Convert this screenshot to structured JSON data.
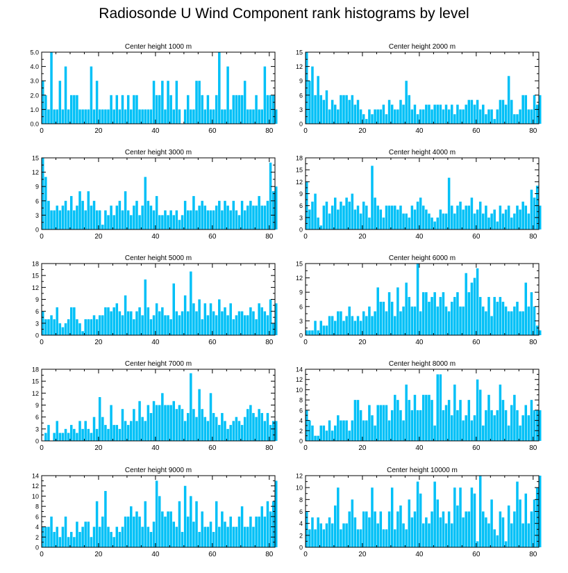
{
  "title": "Radiosonde U Wind Component rank histograms by level",
  "colors": {
    "bar": "#00c0f7",
    "bar_edge": "#ffffff",
    "axis": "#000000"
  },
  "chart_data": [
    {
      "type": "bar",
      "title": "Center height 1000 m",
      "xlim": [
        0,
        82
      ],
      "ylim": [
        0,
        5
      ],
      "yticks": [
        0,
        1,
        2,
        3,
        4,
        5
      ],
      "ytick_labels": [
        "0.0",
        "1.0",
        "2.0",
        "3.0",
        "4.0",
        "5.0"
      ],
      "xticks": [
        0,
        20,
        40,
        60,
        80
      ],
      "values": [
        3,
        2,
        1,
        5,
        1,
        1,
        3,
        1,
        4,
        1,
        2,
        2,
        2,
        1,
        1,
        1,
        1,
        4,
        1,
        3,
        1,
        1,
        1,
        1,
        2,
        1,
        2,
        1,
        2,
        1,
        2,
        1,
        2,
        2,
        1,
        1,
        1,
        1,
        1,
        3,
        2,
        2,
        3,
        1,
        3,
        2,
        1,
        3,
        1,
        0,
        1,
        2,
        1,
        1,
        3,
        3,
        2,
        1,
        2,
        1,
        1,
        2,
        5,
        1,
        1,
        4,
        1,
        2,
        2,
        2,
        2,
        3,
        1,
        1,
        1,
        2,
        1,
        1,
        4,
        2,
        2,
        2,
        1
      ]
    },
    {
      "type": "bar",
      "title": "Center height 2000 m",
      "xlim": [
        0,
        82
      ],
      "ylim": [
        0,
        15
      ],
      "yticks": [
        0,
        3,
        6,
        9,
        12,
        15
      ],
      "ytick_labels": [
        "0",
        "3",
        "6",
        "9",
        "12",
        "15"
      ],
      "xticks": [
        0,
        20,
        40,
        60,
        80
      ],
      "values": [
        15,
        9,
        12,
        6,
        10,
        6,
        5,
        7,
        3,
        5,
        4,
        3,
        6,
        6,
        6,
        5,
        6,
        4,
        5,
        3,
        2,
        1,
        3,
        2,
        3,
        3,
        3,
        4,
        2,
        5,
        4,
        3,
        3,
        5,
        4,
        9,
        6,
        3,
        4,
        2,
        3,
        3,
        4,
        4,
        3,
        4,
        4,
        4,
        3,
        4,
        3,
        4,
        2,
        4,
        3,
        3,
        4,
        5,
        5,
        4,
        5,
        3,
        4,
        2,
        3,
        3,
        1,
        3,
        5,
        5,
        4,
        10,
        5,
        2,
        2,
        3,
        6,
        6,
        3,
        3,
        6,
        4,
        6
      ]
    },
    {
      "type": "bar",
      "title": "Center height 3000 m",
      "xlim": [
        0,
        82
      ],
      "ylim": [
        0,
        15
      ],
      "yticks": [
        0,
        3,
        6,
        9,
        12,
        15
      ],
      "ytick_labels": [
        "0",
        "3",
        "6",
        "9",
        "12",
        "15"
      ],
      "xticks": [
        0,
        20,
        40,
        60,
        80
      ],
      "values": [
        15,
        11,
        6,
        4,
        4,
        5,
        4,
        5,
        6,
        4,
        7,
        4,
        5,
        8,
        6,
        4,
        8,
        5,
        6,
        4,
        4,
        1,
        4,
        3,
        5,
        3,
        5,
        6,
        4,
        8,
        4,
        3,
        5,
        6,
        3,
        5,
        11,
        6,
        5,
        4,
        7,
        3,
        3,
        4,
        3,
        4,
        3,
        4,
        2,
        3,
        6,
        4,
        4,
        7,
        4,
        5,
        6,
        5,
        4,
        4,
        4,
        5,
        6,
        4,
        6,
        5,
        4,
        6,
        4,
        3,
        6,
        4,
        5,
        6,
        5,
        5,
        7,
        5,
        5,
        6,
        14,
        8,
        9
      ]
    },
    {
      "type": "bar",
      "title": "Center height 4000 m",
      "xlim": [
        0,
        82
      ],
      "ylim": [
        0,
        18
      ],
      "yticks": [
        0,
        3,
        6,
        9,
        12,
        15,
        18
      ],
      "ytick_labels": [
        "0",
        "3",
        "6",
        "9",
        "12",
        "15",
        "18"
      ],
      "xticks": [
        0,
        20,
        40,
        60,
        80
      ],
      "values": [
        12,
        5,
        7,
        9,
        3,
        1,
        6,
        7,
        4,
        6,
        8,
        5,
        7,
        6,
        8,
        7,
        9,
        5,
        6,
        4,
        7,
        6,
        3,
        16,
        8,
        6,
        5,
        3,
        6,
        6,
        6,
        6,
        5,
        6,
        4,
        4,
        3,
        6,
        5,
        7,
        8,
        6,
        5,
        4,
        3,
        2,
        3,
        5,
        4,
        4,
        13,
        6,
        4,
        6,
        7,
        5,
        6,
        6,
        8,
        4,
        5,
        7,
        4,
        6,
        3,
        4,
        5,
        2,
        6,
        4,
        5,
        6,
        3,
        4,
        6,
        5,
        7,
        6,
        4,
        10,
        8,
        11,
        6
      ]
    },
    {
      "type": "bar",
      "title": "Center height 5000 m",
      "xlim": [
        0,
        82
      ],
      "ylim": [
        0,
        18
      ],
      "yticks": [
        0,
        3,
        6,
        9,
        12,
        15,
        18
      ],
      "ytick_labels": [
        "0",
        "3",
        "6",
        "9",
        "12",
        "15",
        "18"
      ],
      "xticks": [
        0,
        20,
        40,
        60,
        80
      ],
      "values": [
        6,
        4,
        4,
        5,
        4,
        7,
        3,
        2,
        3,
        4,
        7,
        7,
        4,
        3,
        1,
        4,
        4,
        4,
        5,
        4,
        5,
        5,
        7,
        7,
        6,
        7,
        8,
        6,
        5,
        10,
        6,
        6,
        4,
        6,
        7,
        5,
        14,
        7,
        4,
        5,
        8,
        6,
        7,
        5,
        5,
        4,
        13,
        6,
        5,
        6,
        10,
        6,
        16,
        8,
        6,
        9,
        4,
        8,
        5,
        8,
        6,
        5,
        9,
        6,
        7,
        5,
        8,
        4,
        5,
        6,
        6,
        5,
        5,
        7,
        6,
        4,
        8,
        7,
        6,
        5,
        9,
        3,
        8
      ]
    },
    {
      "type": "bar",
      "title": "Center height 6000 m",
      "xlim": [
        0,
        82
      ],
      "ylim": [
        0,
        15
      ],
      "yticks": [
        0,
        3,
        6,
        9,
        12,
        15
      ],
      "ytick_labels": [
        "0",
        "3",
        "6",
        "9",
        "12",
        "15"
      ],
      "xticks": [
        0,
        20,
        40,
        60,
        80
      ],
      "values": [
        1,
        1,
        1,
        3,
        1,
        3,
        2,
        2,
        4,
        4,
        3,
        5,
        5,
        3,
        4,
        6,
        4,
        3,
        4,
        3,
        5,
        4,
        6,
        4,
        5,
        10,
        7,
        7,
        5,
        9,
        7,
        4,
        10,
        5,
        6,
        11,
        8,
        6,
        6,
        15,
        5,
        9,
        9,
        7,
        8,
        9,
        6,
        8,
        9,
        6,
        5,
        7,
        8,
        9,
        6,
        6,
        13,
        9,
        11,
        12,
        14,
        8,
        6,
        5,
        8,
        4,
        8,
        7,
        8,
        7,
        6,
        5,
        5,
        6,
        7,
        5,
        5,
        11,
        6,
        9,
        6,
        2,
        1
      ]
    },
    {
      "type": "bar",
      "title": "Center height 7000 m",
      "xlim": [
        0,
        82
      ],
      "ylim": [
        0,
        18
      ],
      "yticks": [
        0,
        3,
        6,
        9,
        12,
        15,
        18
      ],
      "ytick_labels": [
        "0",
        "3",
        "6",
        "9",
        "12",
        "15",
        "18"
      ],
      "xticks": [
        0,
        20,
        40,
        60,
        80
      ],
      "values": [
        0,
        2,
        4,
        0,
        2,
        5,
        2,
        2,
        3,
        2,
        4,
        3,
        2,
        5,
        3,
        5,
        3,
        2,
        6,
        3,
        11,
        6,
        4,
        3,
        9,
        4,
        4,
        3,
        8,
        5,
        4,
        5,
        8,
        5,
        10,
        6,
        5,
        9,
        7,
        10,
        9,
        9,
        12,
        9,
        9,
        9,
        10,
        8,
        9,
        8,
        5,
        7,
        17,
        8,
        6,
        13,
        8,
        6,
        5,
        12,
        7,
        6,
        4,
        7,
        5,
        3,
        4,
        5,
        6,
        5,
        4,
        6,
        8,
        9,
        7,
        6,
        8,
        7,
        5,
        7,
        4,
        5,
        5
      ]
    },
    {
      "type": "bar",
      "title": "Center height 8000 m",
      "xlim": [
        0,
        82
      ],
      "ylim": [
        0,
        14
      ],
      "yticks": [
        0,
        2,
        4,
        6,
        8,
        10,
        12,
        14
      ],
      "ytick_labels": [
        "0",
        "2",
        "4",
        "6",
        "8",
        "10",
        "12",
        "14"
      ],
      "xticks": [
        0,
        20,
        40,
        60,
        80
      ],
      "values": [
        6,
        4,
        3,
        1,
        1,
        3,
        3,
        2,
        4,
        2,
        3,
        5,
        4,
        4,
        4,
        2,
        4,
        8,
        8,
        6,
        4,
        4,
        7,
        5,
        3,
        7,
        7,
        7,
        7,
        4,
        6,
        9,
        8,
        6,
        4,
        11,
        8,
        6,
        9,
        6,
        6,
        9,
        9,
        9,
        8,
        3,
        13,
        13,
        6,
        7,
        8,
        5,
        11,
        6,
        8,
        4,
        5,
        8,
        4,
        5,
        12,
        10,
        3,
        6,
        9,
        6,
        5,
        6,
        11,
        8,
        6,
        3,
        7,
        9,
        6,
        3,
        5,
        7,
        5,
        8,
        6,
        6,
        6
      ]
    },
    {
      "type": "bar",
      "title": "Center height 9000 m",
      "xlim": [
        0,
        82
      ],
      "ylim": [
        0,
        14
      ],
      "yticks": [
        0,
        2,
        4,
        6,
        8,
        10,
        12,
        14
      ],
      "ytick_labels": [
        "0",
        "2",
        "4",
        "6",
        "8",
        "10",
        "12",
        "14"
      ],
      "xticks": [
        0,
        20,
        40,
        60,
        80
      ],
      "values": [
        4,
        4,
        4,
        6,
        3,
        4,
        2,
        4,
        6,
        2,
        3,
        2,
        5,
        3,
        4,
        5,
        5,
        2,
        4,
        9,
        4,
        6,
        11,
        4,
        3,
        2,
        4,
        3,
        4,
        6,
        6,
        8,
        6,
        7,
        6,
        4,
        9,
        4,
        3,
        5,
        13,
        10,
        7,
        6,
        7,
        7,
        5,
        4,
        9,
        3,
        12,
        6,
        10,
        5,
        9,
        3,
        7,
        4,
        4,
        5,
        3,
        9,
        4,
        7,
        5,
        4,
        6,
        4,
        4,
        6,
        8,
        4,
        4,
        6,
        4,
        6,
        6,
        8,
        6,
        9,
        7,
        9,
        13
      ]
    },
    {
      "type": "bar",
      "title": "Center height 10000 m",
      "xlim": [
        0,
        82
      ],
      "ylim": [
        0,
        12
      ],
      "yticks": [
        0,
        2,
        4,
        6,
        8,
        10,
        12
      ],
      "ytick_labels": [
        "0",
        "2",
        "4",
        "6",
        "8",
        "10",
        "12"
      ],
      "xticks": [
        0,
        20,
        40,
        60,
        80
      ],
      "values": [
        6,
        3,
        5,
        3,
        5,
        4,
        3,
        4,
        5,
        4,
        7,
        10,
        3,
        4,
        4,
        6,
        8,
        5,
        3,
        3,
        6,
        6,
        5,
        10,
        6,
        4,
        6,
        3,
        3,
        6,
        10,
        3,
        6,
        7,
        4,
        3,
        8,
        5,
        6,
        11,
        9,
        4,
        5,
        4,
        6,
        11,
        8,
        5,
        6,
        4,
        6,
        4,
        10,
        7,
        10,
        5,
        6,
        6,
        10,
        9,
        1,
        12,
        6,
        5,
        4,
        8,
        3,
        2,
        6,
        5,
        1,
        7,
        4,
        6,
        11,
        8,
        4,
        9,
        4,
        6,
        8,
        10,
        12
      ]
    }
  ]
}
